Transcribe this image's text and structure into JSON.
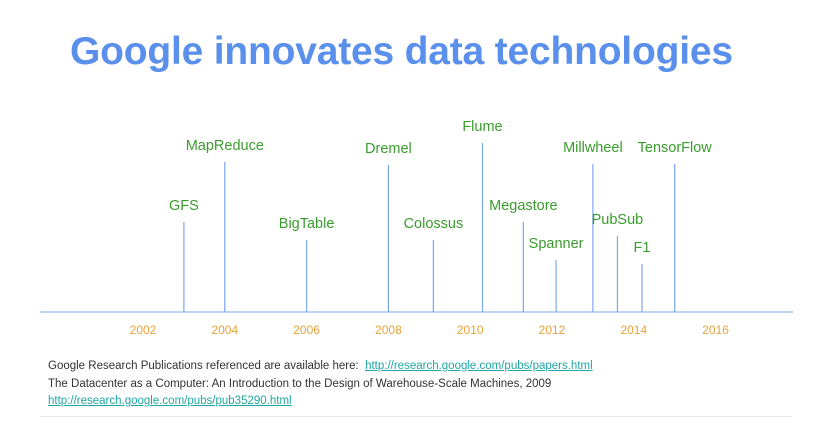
{
  "title": "Google innovates data technologies",
  "colors": {
    "title": "#5a8fec",
    "event_label": "#3b9c2e",
    "year_label": "#e8a23a",
    "stem": "#7aa7ee",
    "axis": "#7aa7ee",
    "link": "#1fa7a3"
  },
  "chart_data": {
    "type": "timeline",
    "axis_years": [
      "2002",
      "2004",
      "2006",
      "2008",
      "2010",
      "2012",
      "2014",
      "2016"
    ],
    "events": [
      {
        "label": "GFS",
        "year": 2003.0
      },
      {
        "label": "MapReduce",
        "year": 2004.0
      },
      {
        "label": "BigTable",
        "year": 2006.0
      },
      {
        "label": "Dremel",
        "year": 2008.0
      },
      {
        "label": "Colossus",
        "year": 2009.1
      },
      {
        "label": "Flume",
        "year": 2010.3
      },
      {
        "label": "Megastore",
        "year": 2011.3
      },
      {
        "label": "Spanner",
        "year": 2012.1
      },
      {
        "label": "Millwheel",
        "year": 2013.0
      },
      {
        "label": "PubSub",
        "year": 2013.6
      },
      {
        "label": "F1",
        "year": 2014.2
      },
      {
        "label": "TensorFlow",
        "year": 2015.0
      }
    ]
  },
  "footnotes": {
    "line1_text": "Google Research Publications referenced are available here:",
    "line1_link": "http://research.google.com/pubs/papers.html",
    "line2_text": "The Datacenter as a Computer: An Introduction to the Design of Warehouse-Scale Machines, 2009",
    "line3_link": "http://research.google.com/pubs/pub35290.html"
  }
}
